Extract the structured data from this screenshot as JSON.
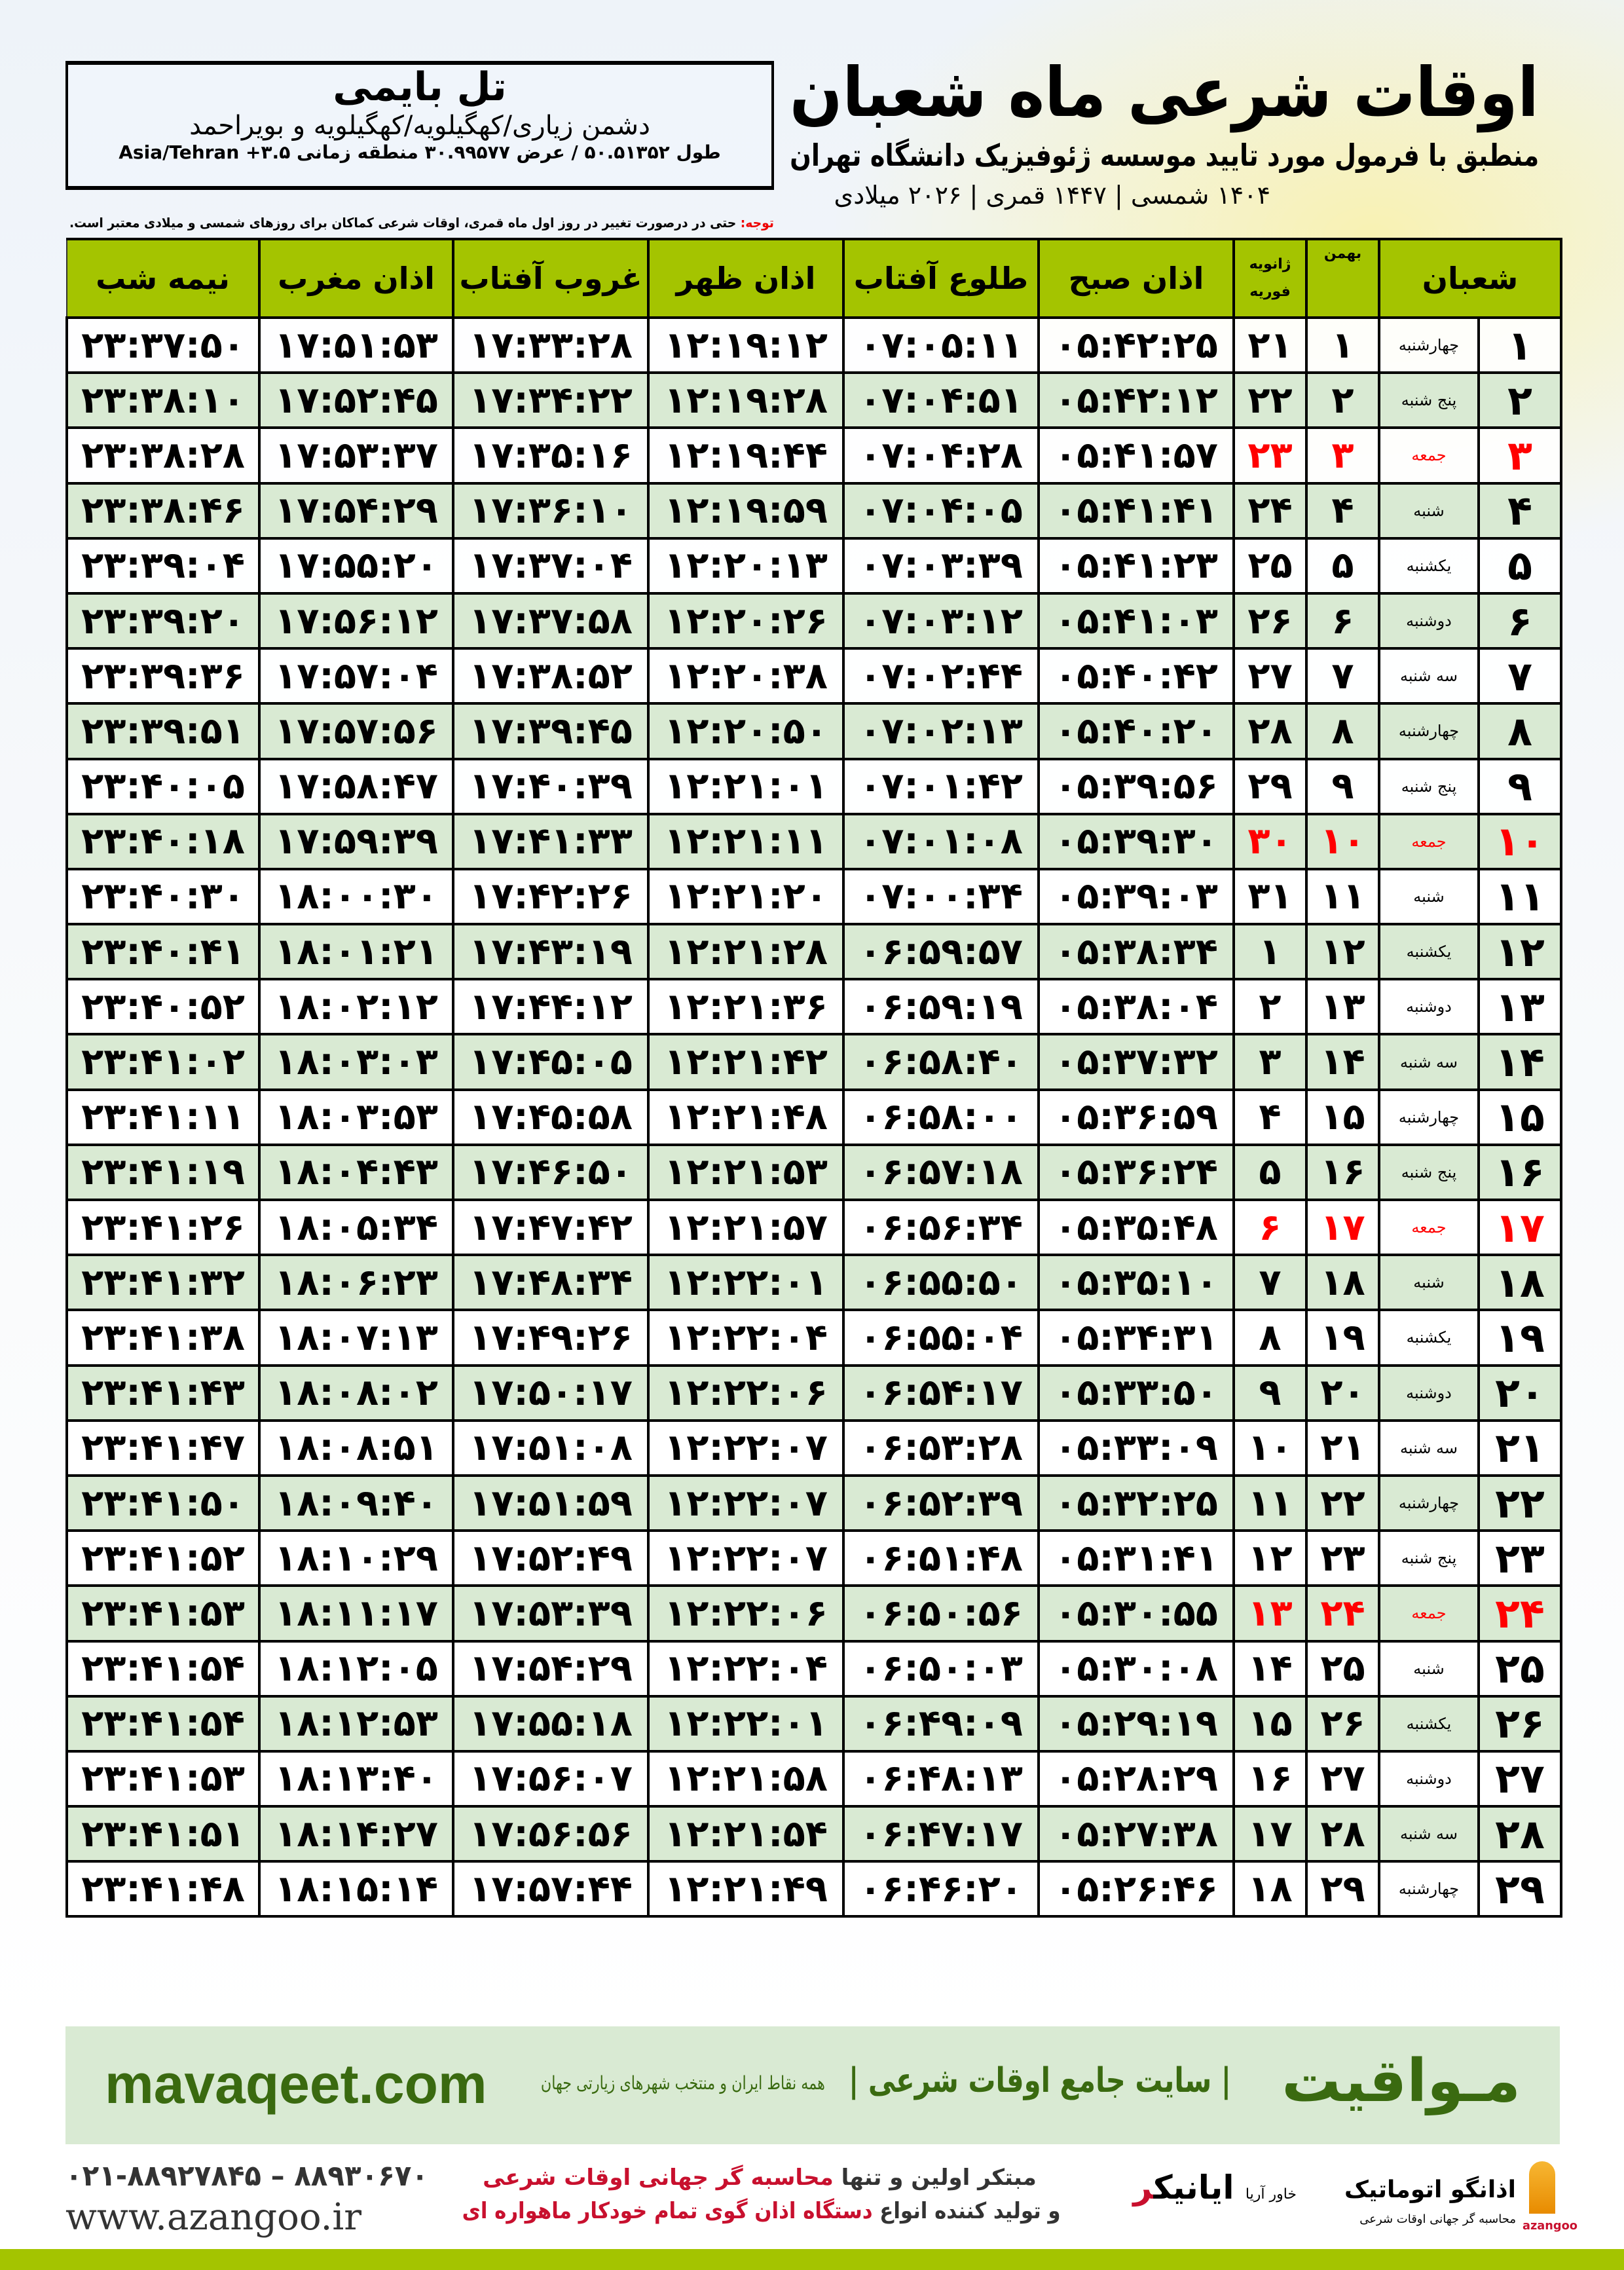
{
  "header": {
    "title": "اوقات شرعی ماه شعبان",
    "subtitle": "منطبق با فرمول مورد تایید موسسه ژئوفیزیک دانشگاه تهران",
    "dates": "۱۴۰۴ شمسی | ۱۴۴۷ قمری | ۲۰۲۶ میلادی"
  },
  "location": {
    "name": "تل بایمی",
    "region": "دشمن زیاری/کهگیلویه/کهگیلویه و بویراحمد",
    "coords": "طول ۵۰.۵۱۳۵۲ / عرض ۳۰.۹۹۵۷۷ منطقه زمانی Asia/Tehran +۳.۵"
  },
  "note": {
    "label": "توجه:",
    "text": " حتی در درصورت تغییر در روز اول ماه قمری، اوقات شرعی کماکان برای روزهای شمسی و میلادی معتبر است."
  },
  "columns": {
    "shaban": "شعبان",
    "bahman": "بهمن",
    "gregorian_top": "ژانویه",
    "gregorian_bottom": "فوریه",
    "fajr": "اذان صبح",
    "sunrise": "طلوع آفتاب",
    "dhuhr": "اذان ظهر",
    "sunset": "غروب آفتاب",
    "maghrib": "اذان مغرب",
    "midnight": "نیمه شب"
  },
  "colors": {
    "header_green": "#a4c400",
    "row_alt": "#d9ead3",
    "friday": "#ff0000",
    "brand_green": "#3a6a10"
  },
  "rows": [
    {
      "day": "۱",
      "weekday": "چهارشنبه",
      "bahman": "۱",
      "greg": "۲۱",
      "fajr": "۰۵:۴۲:۲۵",
      "sunrise": "۰۷:۰۵:۱۱",
      "dhuhr": "۱۲:۱۹:۱۲",
      "sunset": "۱۷:۳۳:۲۸",
      "maghrib": "۱۷:۵۱:۵۳",
      "midnight": "۲۳:۳۷:۵۰"
    },
    {
      "day": "۲",
      "weekday": "پنج شنبه",
      "bahman": "۲",
      "greg": "۲۲",
      "fajr": "۰۵:۴۲:۱۲",
      "sunrise": "۰۷:۰۴:۵۱",
      "dhuhr": "۱۲:۱۹:۲۸",
      "sunset": "۱۷:۳۴:۲۲",
      "maghrib": "۱۷:۵۲:۴۵",
      "midnight": "۲۳:۳۸:۱۰"
    },
    {
      "day": "۳",
      "weekday": "جمعه",
      "bahman": "۳",
      "greg": "۲۳",
      "fajr": "۰۵:۴۱:۵۷",
      "sunrise": "۰۷:۰۴:۲۸",
      "dhuhr": "۱۲:۱۹:۴۴",
      "sunset": "۱۷:۳۵:۱۶",
      "maghrib": "۱۷:۵۳:۳۷",
      "midnight": "۲۳:۳۸:۲۸",
      "friday": true
    },
    {
      "day": "۴",
      "weekday": "شنبه",
      "bahman": "۴",
      "greg": "۲۴",
      "fajr": "۰۵:۴۱:۴۱",
      "sunrise": "۰۷:۰۴:۰۵",
      "dhuhr": "۱۲:۱۹:۵۹",
      "sunset": "۱۷:۳۶:۱۰",
      "maghrib": "۱۷:۵۴:۲۹",
      "midnight": "۲۳:۳۸:۴۶"
    },
    {
      "day": "۵",
      "weekday": "یکشنبه",
      "bahman": "۵",
      "greg": "۲۵",
      "fajr": "۰۵:۴۱:۲۳",
      "sunrise": "۰۷:۰۳:۳۹",
      "dhuhr": "۱۲:۲۰:۱۳",
      "sunset": "۱۷:۳۷:۰۴",
      "maghrib": "۱۷:۵۵:۲۰",
      "midnight": "۲۳:۳۹:۰۴"
    },
    {
      "day": "۶",
      "weekday": "دوشنبه",
      "bahman": "۶",
      "greg": "۲۶",
      "fajr": "۰۵:۴۱:۰۳",
      "sunrise": "۰۷:۰۳:۱۲",
      "dhuhr": "۱۲:۲۰:۲۶",
      "sunset": "۱۷:۳۷:۵۸",
      "maghrib": "۱۷:۵۶:۱۲",
      "midnight": "۲۳:۳۹:۲۰"
    },
    {
      "day": "۷",
      "weekday": "سه شنبه",
      "bahman": "۷",
      "greg": "۲۷",
      "fajr": "۰۵:۴۰:۴۲",
      "sunrise": "۰۷:۰۲:۴۴",
      "dhuhr": "۱۲:۲۰:۳۸",
      "sunset": "۱۷:۳۸:۵۲",
      "maghrib": "۱۷:۵۷:۰۴",
      "midnight": "۲۳:۳۹:۳۶"
    },
    {
      "day": "۸",
      "weekday": "چهارشنبه",
      "bahman": "۸",
      "greg": "۲۸",
      "fajr": "۰۵:۴۰:۲۰",
      "sunrise": "۰۷:۰۲:۱۳",
      "dhuhr": "۱۲:۲۰:۵۰",
      "sunset": "۱۷:۳۹:۴۵",
      "maghrib": "۱۷:۵۷:۵۶",
      "midnight": "۲۳:۳۹:۵۱"
    },
    {
      "day": "۹",
      "weekday": "پنج شنبه",
      "bahman": "۹",
      "greg": "۲۹",
      "fajr": "۰۵:۳۹:۵۶",
      "sunrise": "۰۷:۰۱:۴۲",
      "dhuhr": "۱۲:۲۱:۰۱",
      "sunset": "۱۷:۴۰:۳۹",
      "maghrib": "۱۷:۵۸:۴۷",
      "midnight": "۲۳:۴۰:۰۵"
    },
    {
      "day": "۱۰",
      "weekday": "جمعه",
      "bahman": "۱۰",
      "greg": "۳۰",
      "fajr": "۰۵:۳۹:۳۰",
      "sunrise": "۰۷:۰۱:۰۸",
      "dhuhr": "۱۲:۲۱:۱۱",
      "sunset": "۱۷:۴۱:۳۳",
      "maghrib": "۱۷:۵۹:۳۹",
      "midnight": "۲۳:۴۰:۱۸",
      "friday": true
    },
    {
      "day": "۱۱",
      "weekday": "شنبه",
      "bahman": "۱۱",
      "greg": "۳۱",
      "fajr": "۰۵:۳۹:۰۳",
      "sunrise": "۰۷:۰۰:۳۴",
      "dhuhr": "۱۲:۲۱:۲۰",
      "sunset": "۱۷:۴۲:۲۶",
      "maghrib": "۱۸:۰۰:۳۰",
      "midnight": "۲۳:۴۰:۳۰"
    },
    {
      "day": "۱۲",
      "weekday": "یکشنبه",
      "bahman": "۱۲",
      "greg": "۱",
      "fajr": "۰۵:۳۸:۳۴",
      "sunrise": "۰۶:۵۹:۵۷",
      "dhuhr": "۱۲:۲۱:۲۸",
      "sunset": "۱۷:۴۳:۱۹",
      "maghrib": "۱۸:۰۱:۲۱",
      "midnight": "۲۳:۴۰:۴۱"
    },
    {
      "day": "۱۳",
      "weekday": "دوشنبه",
      "bahman": "۱۳",
      "greg": "۲",
      "fajr": "۰۵:۳۸:۰۴",
      "sunrise": "۰۶:۵۹:۱۹",
      "dhuhr": "۱۲:۲۱:۳۶",
      "sunset": "۱۷:۴۴:۱۲",
      "maghrib": "۱۸:۰۲:۱۲",
      "midnight": "۲۳:۴۰:۵۲"
    },
    {
      "day": "۱۴",
      "weekday": "سه شنبه",
      "bahman": "۱۴",
      "greg": "۳",
      "fajr": "۰۵:۳۷:۳۲",
      "sunrise": "۰۶:۵۸:۴۰",
      "dhuhr": "۱۲:۲۱:۴۲",
      "sunset": "۱۷:۴۵:۰۵",
      "maghrib": "۱۸:۰۳:۰۳",
      "midnight": "۲۳:۴۱:۰۲"
    },
    {
      "day": "۱۵",
      "weekday": "چهارشنبه",
      "bahman": "۱۵",
      "greg": "۴",
      "fajr": "۰۵:۳۶:۵۹",
      "sunrise": "۰۶:۵۸:۰۰",
      "dhuhr": "۱۲:۲۱:۴۸",
      "sunset": "۱۷:۴۵:۵۸",
      "maghrib": "۱۸:۰۳:۵۳",
      "midnight": "۲۳:۴۱:۱۱"
    },
    {
      "day": "۱۶",
      "weekday": "پنج شنبه",
      "bahman": "۱۶",
      "greg": "۵",
      "fajr": "۰۵:۳۶:۲۴",
      "sunrise": "۰۶:۵۷:۱۸",
      "dhuhr": "۱۲:۲۱:۵۳",
      "sunset": "۱۷:۴۶:۵۰",
      "maghrib": "۱۸:۰۴:۴۳",
      "midnight": "۲۳:۴۱:۱۹"
    },
    {
      "day": "۱۷",
      "weekday": "جمعه",
      "bahman": "۱۷",
      "greg": "۶",
      "fajr": "۰۵:۳۵:۴۸",
      "sunrise": "۰۶:۵۶:۳۴",
      "dhuhr": "۱۲:۲۱:۵۷",
      "sunset": "۱۷:۴۷:۴۲",
      "maghrib": "۱۸:۰۵:۳۴",
      "midnight": "۲۳:۴۱:۲۶",
      "friday": true
    },
    {
      "day": "۱۸",
      "weekday": "شنبه",
      "bahman": "۱۸",
      "greg": "۷",
      "fajr": "۰۵:۳۵:۱۰",
      "sunrise": "۰۶:۵۵:۵۰",
      "dhuhr": "۱۲:۲۲:۰۱",
      "sunset": "۱۷:۴۸:۳۴",
      "maghrib": "۱۸:۰۶:۲۳",
      "midnight": "۲۳:۴۱:۳۲"
    },
    {
      "day": "۱۹",
      "weekday": "یکشنبه",
      "bahman": "۱۹",
      "greg": "۸",
      "fajr": "۰۵:۳۴:۳۱",
      "sunrise": "۰۶:۵۵:۰۴",
      "dhuhr": "۱۲:۲۲:۰۴",
      "sunset": "۱۷:۴۹:۲۶",
      "maghrib": "۱۸:۰۷:۱۳",
      "midnight": "۲۳:۴۱:۳۸"
    },
    {
      "day": "۲۰",
      "weekday": "دوشنبه",
      "bahman": "۲۰",
      "greg": "۹",
      "fajr": "۰۵:۳۳:۵۰",
      "sunrise": "۰۶:۵۴:۱۷",
      "dhuhr": "۱۲:۲۲:۰۶",
      "sunset": "۱۷:۵۰:۱۷",
      "maghrib": "۱۸:۰۸:۰۲",
      "midnight": "۲۳:۴۱:۴۳"
    },
    {
      "day": "۲۱",
      "weekday": "سه شنبه",
      "bahman": "۲۱",
      "greg": "۱۰",
      "fajr": "۰۵:۳۳:۰۹",
      "sunrise": "۰۶:۵۳:۲۸",
      "dhuhr": "۱۲:۲۲:۰۷",
      "sunset": "۱۷:۵۱:۰۸",
      "maghrib": "۱۸:۰۸:۵۱",
      "midnight": "۲۳:۴۱:۴۷"
    },
    {
      "day": "۲۲",
      "weekday": "چهارشنبه",
      "bahman": "۲۲",
      "greg": "۱۱",
      "fajr": "۰۵:۳۲:۲۵",
      "sunrise": "۰۶:۵۲:۳۹",
      "dhuhr": "۱۲:۲۲:۰۷",
      "sunset": "۱۷:۵۱:۵۹",
      "maghrib": "۱۸:۰۹:۴۰",
      "midnight": "۲۳:۴۱:۵۰"
    },
    {
      "day": "۲۳",
      "weekday": "پنج شنبه",
      "bahman": "۲۳",
      "greg": "۱۲",
      "fajr": "۰۵:۳۱:۴۱",
      "sunrise": "۰۶:۵۱:۴۸",
      "dhuhr": "۱۲:۲۲:۰۷",
      "sunset": "۱۷:۵۲:۴۹",
      "maghrib": "۱۸:۱۰:۲۹",
      "midnight": "۲۳:۴۱:۵۲"
    },
    {
      "day": "۲۴",
      "weekday": "جمعه",
      "bahman": "۲۴",
      "greg": "۱۳",
      "fajr": "۰۵:۳۰:۵۵",
      "sunrise": "۰۶:۵۰:۵۶",
      "dhuhr": "۱۲:۲۲:۰۶",
      "sunset": "۱۷:۵۳:۳۹",
      "maghrib": "۱۸:۱۱:۱۷",
      "midnight": "۲۳:۴۱:۵۳",
      "friday": true
    },
    {
      "day": "۲۵",
      "weekday": "شنبه",
      "bahman": "۲۵",
      "greg": "۱۴",
      "fajr": "۰۵:۳۰:۰۸",
      "sunrise": "۰۶:۵۰:۰۳",
      "dhuhr": "۱۲:۲۲:۰۴",
      "sunset": "۱۷:۵۴:۲۹",
      "maghrib": "۱۸:۱۲:۰۵",
      "midnight": "۲۳:۴۱:۵۴"
    },
    {
      "day": "۲۶",
      "weekday": "یکشنبه",
      "bahman": "۲۶",
      "greg": "۱۵",
      "fajr": "۰۵:۲۹:۱۹",
      "sunrise": "۰۶:۴۹:۰۹",
      "dhuhr": "۱۲:۲۲:۰۱",
      "sunset": "۱۷:۵۵:۱۸",
      "maghrib": "۱۸:۱۲:۵۳",
      "midnight": "۲۳:۴۱:۵۴"
    },
    {
      "day": "۲۷",
      "weekday": "دوشنبه",
      "bahman": "۲۷",
      "greg": "۱۶",
      "fajr": "۰۵:۲۸:۲۹",
      "sunrise": "۰۶:۴۸:۱۳",
      "dhuhr": "۱۲:۲۱:۵۸",
      "sunset": "۱۷:۵۶:۰۷",
      "maghrib": "۱۸:۱۳:۴۰",
      "midnight": "۲۳:۴۱:۵۳"
    },
    {
      "day": "۲۸",
      "weekday": "سه شنبه",
      "bahman": "۲۸",
      "greg": "۱۷",
      "fajr": "۰۵:۲۷:۳۸",
      "sunrise": "۰۶:۴۷:۱۷",
      "dhuhr": "۱۲:۲۱:۵۴",
      "sunset": "۱۷:۵۶:۵۶",
      "maghrib": "۱۸:۱۴:۲۷",
      "midnight": "۲۳:۴۱:۵۱"
    },
    {
      "day": "۲۹",
      "weekday": "چهارشنبه",
      "bahman": "۲۹",
      "greg": "۱۸",
      "fajr": "۰۵:۲۶:۴۶",
      "sunrise": "۰۶:۴۶:۲۰",
      "dhuhr": "۱۲:۲۱:۴۹",
      "sunset": "۱۷:۵۷:۴۴",
      "maghrib": "۱۸:۱۵:۱۴",
      "midnight": "۲۳:۴۱:۴۸"
    }
  ],
  "band": {
    "brand": "مـواقیت",
    "slogan": "| سایت جامع اوقات شرعی |",
    "sub": "همه نقاط ایران و منتخب شهرهای زیارتی جهان",
    "site": "mavaqeet.com"
  },
  "footer": {
    "phone": "۰۲۱-۸۸۹۲۷۸۴۵ – ۸۸۹۳۰۶۷۰",
    "web": "www.azangoo.ir",
    "promo1a": "مبتکر اولین و تنها ",
    "promo1b": "محاسبه گر جهانی اوقات شرعی",
    "promo2a": "و تولید کننده انواع ",
    "promo2b": "دستگاه اذان گوی تمام خودکار ماهواره ای",
    "logo1a": "ر",
    "logo1b": "ایانیک",
    "logo1_side": "خاور آریا",
    "logo2": "اذانگو اتوماتیک",
    "logo2_sub": "محاسبه گر جهانی اوقات شرعی",
    "logo2_en": "azangoo"
  }
}
